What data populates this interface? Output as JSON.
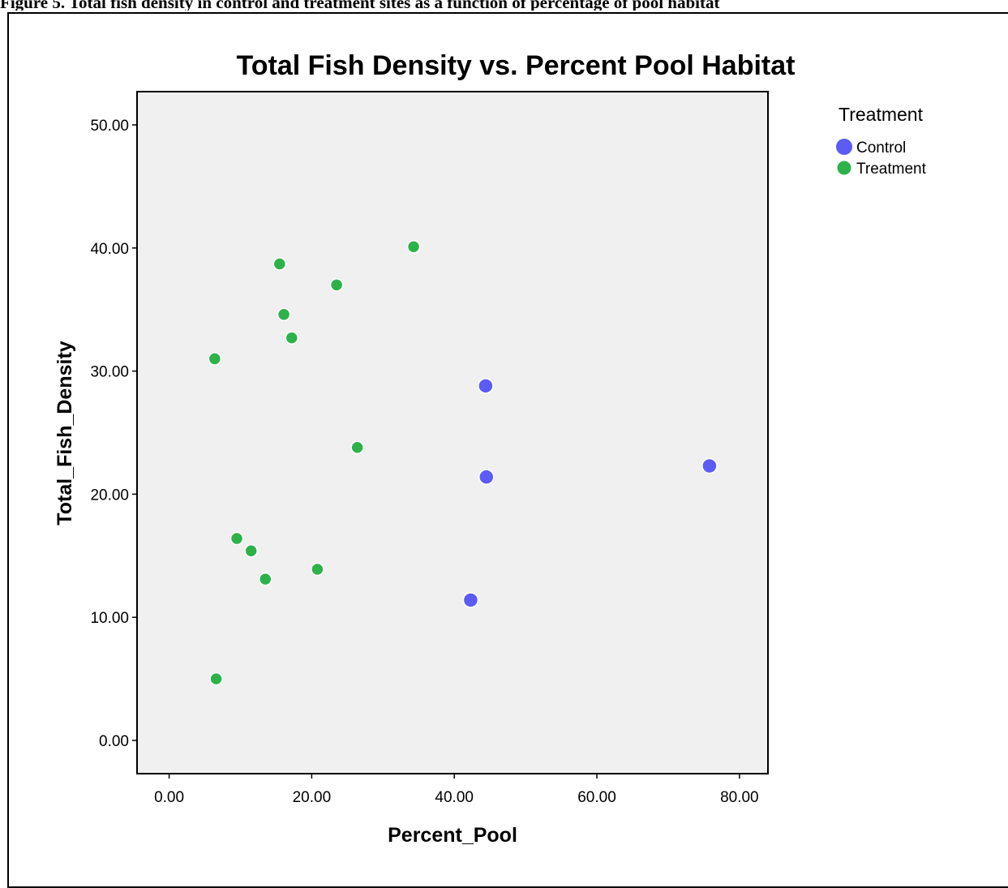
{
  "caption": "Figure 5. Total fish density in control and treatment sites as a function of percentage of pool habitat",
  "chart_data": {
    "type": "scatter",
    "title": "Total Fish Density vs. Percent Pool Habitat",
    "xlabel": "Percent_Pool",
    "ylabel": "Total_Fish_Density",
    "xlim": [
      -4.5,
      84
    ],
    "ylim": [
      -2.7,
      52.7
    ],
    "xticks": [
      "0.00",
      "20.00",
      "40.00",
      "60.00",
      "80.00"
    ],
    "yticks": [
      "0.00",
      "10.00",
      "20.00",
      "30.00",
      "40.00",
      "50.00"
    ],
    "grid": false,
    "legend": {
      "title": "Treatment",
      "placement": "right-top"
    },
    "series": [
      {
        "name": "Control",
        "color": "#5b5bf5",
        "points": [
          {
            "x": 44.4,
            "y": 28.8
          },
          {
            "x": 44.5,
            "y": 21.4
          },
          {
            "x": 75.8,
            "y": 22.3
          },
          {
            "x": 42.3,
            "y": 11.4
          }
        ]
      },
      {
        "name": "Treatment",
        "color": "#2db24a",
        "points": [
          {
            "x": 34.3,
            "y": 40.1
          },
          {
            "x": 15.5,
            "y": 38.7
          },
          {
            "x": 23.5,
            "y": 37.0
          },
          {
            "x": 16.1,
            "y": 34.6
          },
          {
            "x": 17.2,
            "y": 32.7
          },
          {
            "x": 6.4,
            "y": 31.0
          },
          {
            "x": 26.4,
            "y": 23.8
          },
          {
            "x": 9.5,
            "y": 16.4
          },
          {
            "x": 11.5,
            "y": 15.4
          },
          {
            "x": 20.8,
            "y": 13.9
          },
          {
            "x": 13.5,
            "y": 13.1
          },
          {
            "x": 6.6,
            "y": 5.0
          }
        ]
      }
    ]
  }
}
